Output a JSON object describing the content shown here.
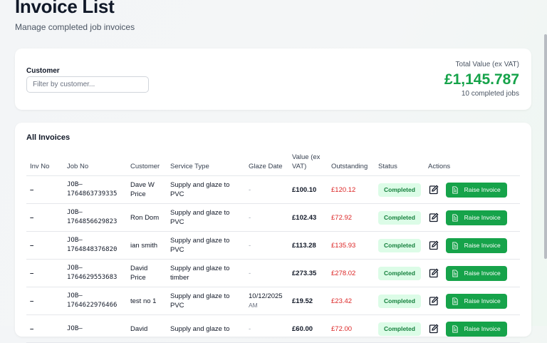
{
  "header": {
    "title": "Invoice List",
    "subtitle": "Manage completed job invoices"
  },
  "filter": {
    "label": "Customer",
    "placeholder": "Filter by customer..."
  },
  "summary": {
    "total_label": "Total Value (ex VAT)",
    "total_value": "£1,145.787",
    "count_text": "10 completed jobs"
  },
  "table": {
    "title": "All Invoices",
    "columns": [
      "Inv No",
      "Job No",
      "Customer",
      "Service Type",
      "Glaze Date",
      "Value (ex VAT)",
      "Outstanding",
      "Status",
      "Actions"
    ],
    "raise_label": "Raise Invoice",
    "rows": [
      {
        "inv": "–",
        "job": "JOB–1764863739335",
        "customer": "Dave W Price",
        "service": "Supply and glaze to PVC",
        "glaze_date": "-",
        "glaze_time": "",
        "value": "£100.10",
        "outstanding": "£120.12",
        "status": "Completed"
      },
      {
        "inv": "–",
        "job": "JOB–1764856629823",
        "customer": "Ron Dom",
        "service": "Supply and glaze to PVC",
        "glaze_date": "-",
        "glaze_time": "",
        "value": "£102.43",
        "outstanding": "£72.92",
        "status": "Completed"
      },
      {
        "inv": "–",
        "job": "JOB–1764848376820",
        "customer": "ian smith",
        "service": "Supply and glaze to PVC",
        "glaze_date": "-",
        "glaze_time": "",
        "value": "£113.28",
        "outstanding": "£135.93",
        "status": "Completed"
      },
      {
        "inv": "–",
        "job": "JOB–1764629553683",
        "customer": "David Price",
        "service": "Supply and glaze to timber",
        "glaze_date": "-",
        "glaze_time": "",
        "value": "£273.35",
        "outstanding": "£278.02",
        "status": "Completed"
      },
      {
        "inv": "–",
        "job": "JOB–1764622976466",
        "customer": "test no 1",
        "service": "Supply and glaze to PVC",
        "glaze_date": "10/12/2025",
        "glaze_time": "AM",
        "value": "£19.52",
        "outstanding": "£23.42",
        "status": "Completed"
      },
      {
        "inv": "–",
        "job": "JOB–",
        "customer": "David",
        "service": "Supply and glaze to",
        "glaze_date": "-",
        "glaze_time": "",
        "value": "£60.00",
        "outstanding": "£72.00",
        "status": "Completed"
      }
    ]
  },
  "colors": {
    "accent_green": "#16a34a",
    "badge_bg": "#dcfce7",
    "outstanding_red": "#dc2626"
  },
  "icons": {
    "edit": "edit-icon",
    "document": "document-icon"
  }
}
